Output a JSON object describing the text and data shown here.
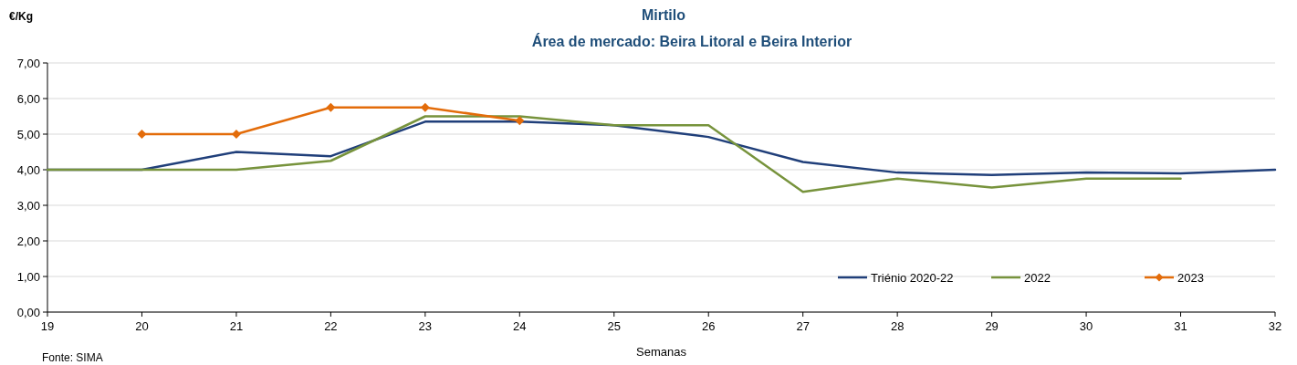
{
  "chart_data": {
    "type": "line",
    "title": "Mirtilo",
    "subtitle": "Área de mercado: Beira Litoral e Beira Interior",
    "xlabel": "Semanas",
    "ylabel": "€/Kg",
    "annotations": [
      "Fonte: SIMA"
    ],
    "x": [
      19,
      20,
      21,
      22,
      23,
      24,
      25,
      26,
      27,
      28,
      29,
      30,
      31,
      32
    ],
    "series": [
      {
        "name": "Triénio 2020-22",
        "color": "#203f7a",
        "marker": "none",
        "values": [
          4.0,
          4.0,
          4.5,
          4.38,
          5.35,
          5.35,
          5.25,
          4.92,
          4.22,
          3.92,
          3.85,
          3.92,
          3.9,
          4.0
        ]
      },
      {
        "name": "2022",
        "color": "#77933c",
        "marker": "none",
        "values": [
          4.0,
          4.0,
          4.0,
          4.25,
          5.5,
          5.5,
          5.25,
          5.25,
          3.38,
          3.75,
          3.5,
          3.75,
          3.75,
          null
        ]
      },
      {
        "name": "2023",
        "color": "#e36c0a",
        "marker": "diamond",
        "values": [
          null,
          5.0,
          5.0,
          5.75,
          5.75,
          5.38,
          null,
          null,
          null,
          null,
          null,
          null,
          null,
          null
        ]
      }
    ],
    "xlim": [
      19,
      32
    ],
    "xticks": [
      19,
      20,
      21,
      22,
      23,
      24,
      25,
      26,
      27,
      28,
      29,
      30,
      31,
      32
    ],
    "ylim": [
      0,
      7
    ],
    "yticks": [
      {
        "value": 0,
        "label": "0,00"
      },
      {
        "value": 1,
        "label": "1,00"
      },
      {
        "value": 2,
        "label": "2,00"
      },
      {
        "value": 3,
        "label": "3,00"
      },
      {
        "value": 4,
        "label": "4,00"
      },
      {
        "value": 5,
        "label": "5,00"
      },
      {
        "value": 6,
        "label": "6,00"
      },
      {
        "value": 7,
        "label": "7,00"
      }
    ],
    "grid": "y",
    "legend": "bottom right",
    "line_style": "solid"
  }
}
